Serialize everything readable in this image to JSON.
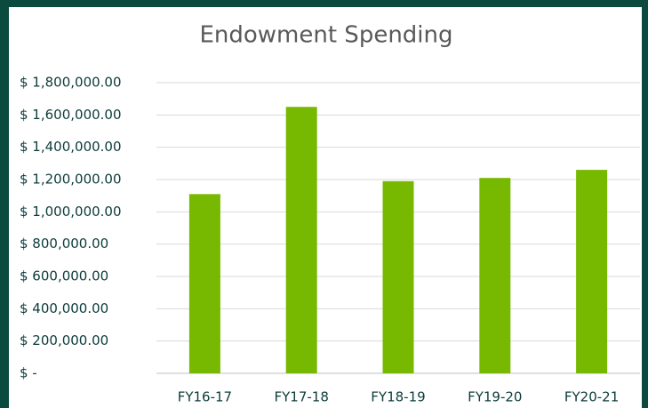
{
  "chart_data": {
    "type": "bar",
    "title": "Endowment Spending",
    "categories": [
      "FY16-17",
      "FY17-18",
      "FY18-19",
      "FY19-20",
      "FY20-21"
    ],
    "values": [
      1110000,
      1650000,
      1190000,
      1210000,
      1260000
    ],
    "color": "#76b900",
    "ylim": [
      0,
      1800000
    ],
    "yticks": [
      {
        "value": 0,
        "label": "$ -"
      },
      {
        "value": 200000,
        "label": "$ 200,000.00"
      },
      {
        "value": 400000,
        "label": "$ 400,000.00"
      },
      {
        "value": 600000,
        "label": "$ 600,000.00"
      },
      {
        "value": 800000,
        "label": "$ 800,000.00"
      },
      {
        "value": 1000000,
        "label": "$ 1,000,000.00"
      },
      {
        "value": 1200000,
        "label": "$ 1,200,000.00"
      },
      {
        "value": 1400000,
        "label": "$ 1,400,000.00"
      },
      {
        "value": 1600000,
        "label": "$ 1,600,000.00"
      },
      {
        "value": 1800000,
        "label": "$ 1,800,000.00"
      }
    ],
    "grid": true
  }
}
